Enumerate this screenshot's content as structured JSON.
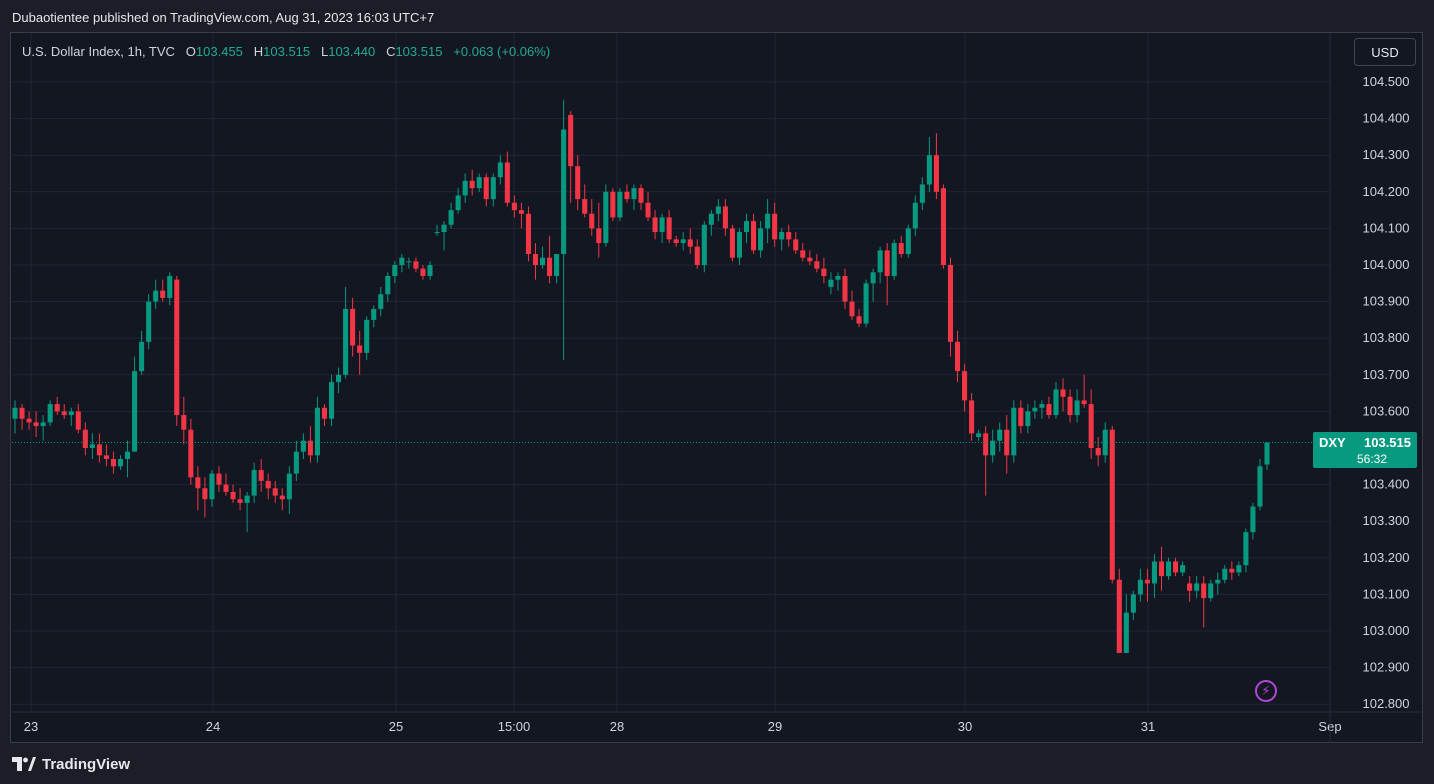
{
  "header": {
    "published": "Dubaotientee published on TradingView.com, Aug 31, 2023 16:03 UTC+7"
  },
  "legend": {
    "symbol": "U.S. Dollar Index, 1h, TVC",
    "o_label": "O",
    "o_value": "103.455",
    "h_label": "H",
    "h_value": "103.515",
    "l_label": "L",
    "l_value": "103.440",
    "c_label": "C",
    "c_value": "103.515",
    "change": "+0.063 (+0.06%)"
  },
  "currency_button": "USD",
  "price_tag": {
    "symbol": "DXY",
    "price": "103.515",
    "countdown": "56:32"
  },
  "footer": {
    "brand": "TradingView"
  },
  "colors": {
    "up": "#089981",
    "down": "#f23645",
    "background": "#131722",
    "grid": "#232632",
    "accent_bolt": "#b147d8"
  },
  "icons": {
    "bolt": "lightning-bolt-icon",
    "logo": "tradingview-logo-icon"
  },
  "chart_data": {
    "type": "candlestick",
    "interval": "1h",
    "y_axis": {
      "range": [
        102.75,
        104.58
      ],
      "ticks": [
        "104.500",
        "104.400",
        "104.300",
        "104.200",
        "104.100",
        "104.000",
        "103.900",
        "103.800",
        "103.700",
        "103.600",
        "103.400",
        "103.300",
        "103.200",
        "103.100",
        "103.000",
        "102.900",
        "102.800"
      ]
    },
    "x_axis": {
      "labels": [
        "23",
        "24",
        "25",
        "15:00",
        "28",
        "29",
        "30",
        "31",
        "Sep"
      ]
    },
    "last_price": 103.515,
    "grid": true,
    "candles": [
      [
        103.58,
        103.63,
        103.54,
        103.61
      ],
      [
        103.61,
        103.62,
        103.55,
        103.58
      ],
      [
        103.58,
        103.6,
        103.55,
        103.57
      ],
      [
        103.57,
        103.6,
        103.53,
        103.56
      ],
      [
        103.56,
        103.59,
        103.52,
        103.57
      ],
      [
        103.57,
        103.63,
        103.56,
        103.62
      ],
      [
        103.62,
        103.64,
        103.59,
        103.6
      ],
      [
        103.6,
        103.62,
        103.58,
        103.59
      ],
      [
        103.59,
        103.61,
        103.56,
        103.6
      ],
      [
        103.6,
        103.62,
        103.54,
        103.55
      ],
      [
        103.55,
        103.57,
        103.48,
        103.5
      ],
      [
        103.5,
        103.54,
        103.47,
        103.51
      ],
      [
        103.51,
        103.54,
        103.46,
        103.48
      ],
      [
        103.48,
        103.51,
        103.45,
        103.47
      ],
      [
        103.47,
        103.49,
        103.43,
        103.45
      ],
      [
        103.45,
        103.48,
        103.44,
        103.47
      ],
      [
        103.47,
        103.52,
        103.42,
        103.49
      ],
      [
        103.49,
        103.75,
        103.49,
        103.71
      ],
      [
        103.71,
        103.82,
        103.7,
        103.79
      ],
      [
        103.79,
        103.92,
        103.77,
        103.9
      ],
      [
        103.9,
        103.96,
        103.88,
        103.93
      ],
      [
        103.93,
        103.96,
        103.9,
        103.91
      ],
      [
        103.91,
        103.98,
        103.89,
        103.97
      ],
      [
        103.96,
        103.97,
        103.56,
        103.59
      ],
      [
        103.59,
        103.64,
        103.51,
        103.55
      ],
      [
        103.55,
        103.58,
        103.4,
        103.42
      ],
      [
        103.42,
        103.45,
        103.33,
        103.39
      ],
      [
        103.39,
        103.42,
        103.31,
        103.36
      ],
      [
        103.36,
        103.44,
        103.34,
        103.43
      ],
      [
        103.43,
        103.45,
        103.38,
        103.4
      ],
      [
        103.4,
        103.43,
        103.37,
        103.38
      ],
      [
        103.38,
        103.4,
        103.35,
        103.36
      ],
      [
        103.36,
        103.39,
        103.33,
        103.35
      ],
      [
        103.35,
        103.38,
        103.27,
        103.37
      ],
      [
        103.37,
        103.46,
        103.35,
        103.44
      ],
      [
        103.44,
        103.47,
        103.38,
        103.41
      ],
      [
        103.41,
        103.43,
        103.36,
        103.39
      ],
      [
        103.39,
        103.41,
        103.35,
        103.37
      ],
      [
        103.37,
        103.39,
        103.33,
        103.36
      ],
      [
        103.36,
        103.45,
        103.32,
        103.43
      ],
      [
        103.43,
        103.52,
        103.41,
        103.49
      ],
      [
        103.49,
        103.54,
        103.47,
        103.52
      ],
      [
        103.52,
        103.56,
        103.46,
        103.48
      ],
      [
        103.48,
        103.64,
        103.46,
        103.61
      ],
      [
        103.61,
        103.62,
        103.56,
        103.58
      ],
      [
        103.58,
        103.7,
        103.56,
        103.68
      ],
      [
        103.68,
        103.72,
        103.65,
        103.7
      ],
      [
        103.7,
        103.94,
        103.69,
        103.88
      ],
      [
        103.88,
        103.91,
        103.75,
        103.78
      ],
      [
        103.78,
        103.82,
        103.7,
        103.76
      ],
      [
        103.76,
        103.86,
        103.74,
        103.85
      ],
      [
        103.85,
        103.89,
        103.83,
        103.88
      ],
      [
        103.88,
        103.94,
        103.86,
        103.92
      ],
      [
        103.92,
        103.98,
        103.9,
        103.97
      ],
      [
        103.97,
        104.01,
        103.95,
        104.0
      ],
      [
        104.0,
        104.03,
        103.98,
        104.02
      ],
      [
        104.01,
        104.02,
        103.99,
        104.01
      ],
      [
        104.01,
        104.02,
        103.98,
        103.99
      ],
      [
        103.99,
        104.0,
        103.96,
        103.97
      ],
      [
        103.97,
        104.01,
        103.96,
        104.0
      ],
      [
        104.09,
        104.11,
        104.08,
        104.09
      ],
      [
        104.09,
        104.12,
        104.04,
        104.11
      ],
      [
        104.11,
        104.17,
        104.1,
        104.15
      ],
      [
        104.15,
        104.21,
        104.14,
        104.19
      ],
      [
        104.19,
        104.25,
        104.17,
        104.23
      ],
      [
        104.23,
        104.26,
        104.19,
        104.21
      ],
      [
        104.21,
        104.25,
        104.2,
        104.24
      ],
      [
        104.24,
        104.25,
        104.16,
        104.18
      ],
      [
        104.18,
        104.25,
        104.16,
        104.24
      ],
      [
        104.24,
        104.3,
        104.22,
        104.28
      ],
      [
        104.28,
        104.31,
        104.16,
        104.17
      ],
      [
        104.17,
        104.19,
        104.13,
        104.15
      ],
      [
        104.15,
        104.17,
        104.1,
        104.14
      ],
      [
        104.14,
        104.16,
        104.01,
        104.03
      ],
      [
        104.03,
        104.06,
        103.96,
        104.0
      ],
      [
        104.0,
        104.05,
        103.99,
        104.02
      ],
      [
        104.02,
        104.08,
        103.95,
        103.97
      ],
      [
        103.97,
        104.03,
        103.95,
        104.03
      ],
      [
        104.03,
        104.45,
        103.74,
        104.37
      ],
      [
        104.41,
        104.42,
        104.17,
        104.27
      ],
      [
        104.27,
        104.3,
        104.15,
        104.18
      ],
      [
        104.18,
        104.22,
        104.13,
        104.14
      ],
      [
        104.14,
        104.18,
        104.08,
        104.1
      ],
      [
        104.1,
        104.17,
        104.02,
        104.06
      ],
      [
        104.06,
        104.22,
        104.05,
        104.2
      ],
      [
        104.2,
        104.21,
        104.12,
        104.13
      ],
      [
        104.13,
        104.21,
        104.12,
        104.2
      ],
      [
        104.2,
        104.22,
        104.17,
        104.18
      ],
      [
        104.18,
        104.22,
        104.15,
        104.21
      ],
      [
        104.21,
        104.22,
        104.15,
        104.17
      ],
      [
        104.17,
        104.2,
        104.12,
        104.13
      ],
      [
        104.13,
        104.15,
        104.07,
        104.09
      ],
      [
        104.09,
        104.14,
        104.06,
        104.13
      ],
      [
        104.13,
        104.15,
        104.06,
        104.07
      ],
      [
        104.07,
        104.08,
        104.05,
        104.06
      ],
      [
        104.06,
        104.09,
        104.04,
        104.07
      ],
      [
        104.07,
        104.1,
        104.03,
        104.05
      ],
      [
        104.05,
        104.07,
        103.99,
        104.0
      ],
      [
        104.0,
        104.12,
        103.98,
        104.11
      ],
      [
        104.11,
        104.15,
        104.08,
        104.14
      ],
      [
        104.14,
        104.18,
        104.12,
        104.16
      ],
      [
        104.16,
        104.18,
        104.08,
        104.1
      ],
      [
        104.1,
        104.11,
        104.01,
        104.02
      ],
      [
        104.02,
        104.1,
        104.0,
        104.09
      ],
      [
        104.09,
        104.14,
        104.06,
        104.12
      ],
      [
        104.12,
        104.14,
        104.03,
        104.04
      ],
      [
        104.04,
        104.12,
        104.02,
        104.1
      ],
      [
        104.1,
        104.18,
        104.06,
        104.14
      ],
      [
        104.14,
        104.17,
        104.05,
        104.07
      ],
      [
        104.07,
        104.1,
        104.04,
        104.09
      ],
      [
        104.09,
        104.11,
        104.05,
        104.07
      ],
      [
        104.07,
        104.09,
        104.03,
        104.04
      ],
      [
        104.04,
        104.06,
        104.01,
        104.02
      ],
      [
        104.02,
        104.04,
        104.0,
        104.01
      ],
      [
        104.01,
        104.03,
        103.98,
        103.99
      ],
      [
        103.99,
        104.02,
        103.95,
        103.97
      ],
      [
        103.94,
        103.98,
        103.92,
        103.96
      ],
      [
        103.96,
        103.98,
        103.93,
        103.97
      ],
      [
        103.97,
        103.99,
        103.88,
        103.9
      ],
      [
        103.9,
        103.93,
        103.85,
        103.86
      ],
      [
        103.86,
        103.88,
        103.83,
        103.84
      ],
      [
        103.84,
        103.96,
        103.83,
        103.95
      ],
      [
        103.95,
        103.99,
        103.9,
        103.98
      ],
      [
        103.98,
        104.05,
        103.95,
        104.04
      ],
      [
        104.04,
        104.06,
        103.89,
        103.97
      ],
      [
        103.97,
        104.07,
        103.96,
        104.06
      ],
      [
        104.06,
        104.08,
        104.02,
        104.03
      ],
      [
        104.03,
        104.11,
        104.02,
        104.1
      ],
      [
        104.1,
        104.19,
        104.08,
        104.17
      ],
      [
        104.17,
        104.24,
        104.15,
        104.22
      ],
      [
        104.22,
        104.35,
        104.2,
        104.3
      ],
      [
        104.3,
        104.36,
        104.18,
        104.2
      ],
      [
        104.21,
        104.22,
        103.99,
        104.0
      ],
      [
        104.0,
        104.02,
        103.75,
        103.79
      ],
      [
        103.79,
        103.82,
        103.68,
        103.71
      ],
      [
        103.71,
        103.73,
        103.6,
        103.63
      ],
      [
        103.63,
        103.65,
        103.52,
        103.54
      ],
      [
        103.53,
        103.55,
        103.52,
        103.54
      ],
      [
        103.54,
        103.56,
        103.37,
        103.48
      ],
      [
        103.48,
        103.55,
        103.46,
        103.52
      ],
      [
        103.52,
        103.57,
        103.49,
        103.55
      ],
      [
        103.55,
        103.59,
        103.43,
        103.48
      ],
      [
        103.48,
        103.63,
        103.46,
        103.61
      ],
      [
        103.61,
        103.63,
        103.54,
        103.56
      ],
      [
        103.56,
        103.62,
        103.54,
        103.6
      ],
      [
        103.6,
        103.63,
        103.58,
        103.61
      ],
      [
        103.61,
        103.63,
        103.58,
        103.62
      ],
      [
        103.62,
        103.64,
        103.58,
        103.59
      ],
      [
        103.59,
        103.68,
        103.58,
        103.66
      ],
      [
        103.66,
        103.69,
        103.6,
        103.64
      ],
      [
        103.64,
        103.66,
        103.57,
        103.59
      ],
      [
        103.59,
        103.66,
        103.57,
        103.63
      ],
      [
        103.63,
        103.7,
        103.61,
        103.62
      ],
      [
        103.62,
        103.66,
        103.47,
        103.5
      ],
      [
        103.5,
        103.53,
        103.45,
        103.48
      ],
      [
        103.48,
        103.57,
        103.46,
        103.55
      ],
      [
        103.55,
        103.56,
        103.13,
        103.14
      ],
      [
        103.14,
        103.17,
        102.94,
        102.94
      ],
      [
        102.94,
        103.1,
        102.94,
        103.05
      ],
      [
        103.05,
        103.11,
        103.03,
        103.1
      ],
      [
        103.1,
        103.17,
        103.08,
        103.14
      ],
      [
        103.14,
        103.17,
        103.08,
        103.13
      ],
      [
        103.13,
        103.21,
        103.09,
        103.19
      ],
      [
        103.19,
        103.23,
        103.11,
        103.15
      ],
      [
        103.15,
        103.2,
        103.14,
        103.19
      ],
      [
        103.19,
        103.2,
        103.15,
        103.16
      ],
      [
        103.16,
        103.19,
        103.15,
        103.18
      ],
      [
        103.13,
        103.15,
        103.08,
        103.11
      ],
      [
        103.11,
        103.15,
        103.09,
        103.13
      ],
      [
        103.13,
        103.15,
        103.01,
        103.09
      ],
      [
        103.09,
        103.14,
        103.08,
        103.13
      ],
      [
        103.13,
        103.16,
        103.1,
        103.14
      ],
      [
        103.14,
        103.18,
        103.13,
        103.17
      ],
      [
        103.17,
        103.19,
        103.14,
        103.16
      ],
      [
        103.16,
        103.19,
        103.15,
        103.18
      ],
      [
        103.18,
        103.28,
        103.16,
        103.27
      ],
      [
        103.27,
        103.35,
        103.25,
        103.34
      ],
      [
        103.34,
        103.47,
        103.33,
        103.45
      ],
      [
        103.455,
        103.515,
        103.44,
        103.515
      ]
    ]
  }
}
